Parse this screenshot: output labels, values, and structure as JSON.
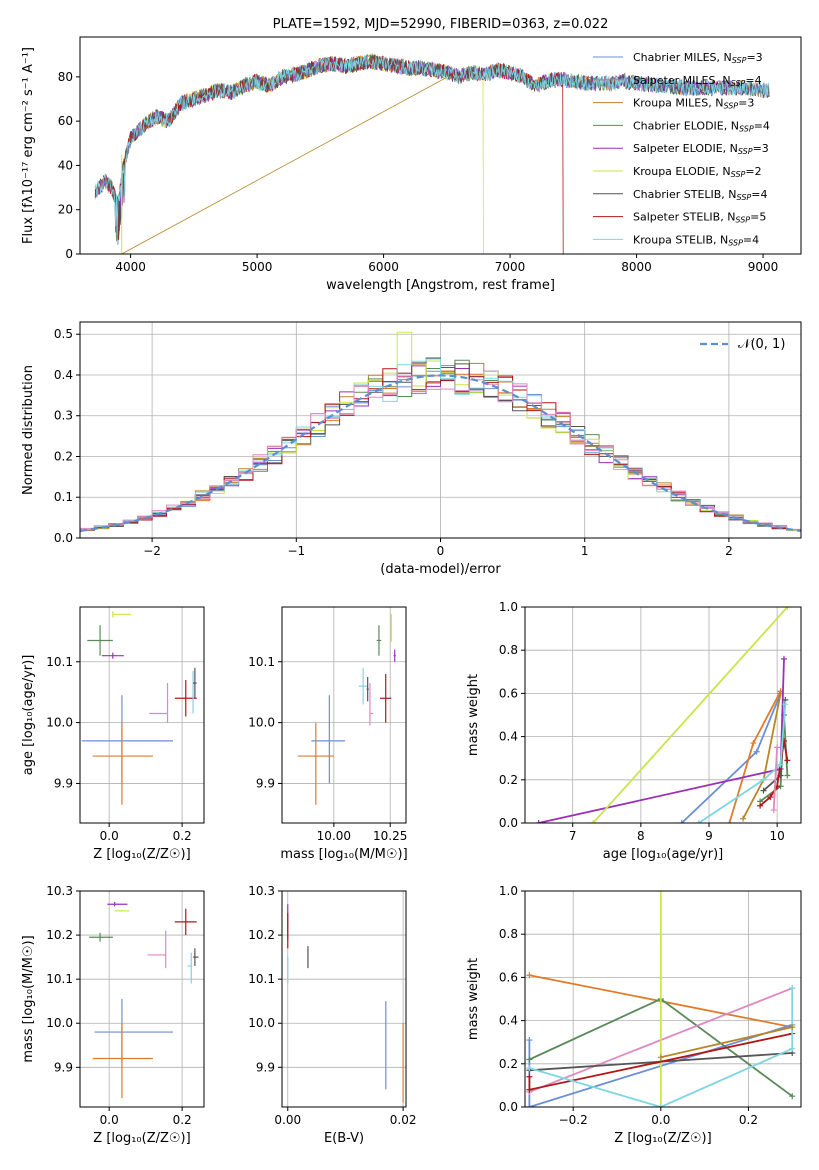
{
  "colors": [
    "#6a8fd6",
    "#e07b2a",
    "#b8862a",
    "#5a8a5a",
    "#9b30b8",
    "#c8e64a",
    "#555555",
    "#b01818",
    "#7dd6e0",
    "#e088c0"
  ],
  "chart_data": [
    {
      "id": "spectrum",
      "type": "line",
      "title": "PLATE=1592, MJD=52990, FIBERID=0363, z=0.022",
      "xlabel": "wavelength [Angstrom, rest frame]",
      "ylabel": "Flux [fλ10⁻¹⁷ erg cm⁻² s⁻¹ A⁻¹]",
      "xlim": [
        3600,
        9300
      ],
      "ylim": [
        0,
        98
      ],
      "xticks": [
        "4000",
        "5000",
        "6000",
        "7000",
        "8000",
        "9000"
      ],
      "yticks": [
        "0",
        "20",
        "40",
        "60",
        "80"
      ],
      "continuum": {
        "x": [
          3720,
          3800,
          3850,
          3900,
          3950,
          4000,
          4100,
          4200,
          4300,
          4400,
          4500,
          4600,
          4700,
          4800,
          4900,
          5000,
          5100,
          5200,
          5300,
          5400,
          5500,
          5600,
          5700,
          5800,
          5900,
          6000,
          6100,
          6200,
          6300,
          6400,
          6500,
          6600,
          6700,
          6800,
          6900,
          7000,
          7100,
          7200,
          7300,
          7400,
          7500,
          7600,
          7700,
          7800,
          7900,
          8000,
          8200,
          8400,
          8600,
          8800,
          9000
        ],
        "y": [
          28,
          33,
          30,
          22,
          42,
          52,
          58,
          62,
          60,
          68,
          70,
          72,
          74,
          73,
          76,
          78,
          76,
          80,
          81,
          83,
          85,
          86,
          85,
          86,
          87,
          86,
          85,
          84,
          84,
          83,
          82,
          80,
          82,
          81,
          83,
          82,
          80,
          76,
          78,
          79,
          78,
          77,
          77,
          77,
          78,
          77,
          76,
          75,
          75,
          75,
          74
        ]
      },
      "dips": [
        {
          "name": "Kroupa MILES",
          "x": 3930,
          "y": 0
        },
        {
          "name": "Kroupa ELODIE",
          "x": 6790,
          "y": 0
        },
        {
          "name": "Salpeter STELIB",
          "x": 7420,
          "y": 0
        }
      ],
      "legend": [
        {
          "name": "Chabrier MILES, N",
          "sub": "SSP",
          "val": "=3",
          "color": "#6a8fd6"
        },
        {
          "name": "Salpeter MILES, N",
          "sub": "SSP",
          "val": "=4",
          "color": "#e07b2a"
        },
        {
          "name": "Kroupa MILES, N",
          "sub": "SSP",
          "val": "=3",
          "color": "#b8862a"
        },
        {
          "name": "Chabrier ELODIE, N",
          "sub": "SSP",
          "val": "=4",
          "color": "#5a8a5a"
        },
        {
          "name": "Salpeter ELODIE, N",
          "sub": "SSP",
          "val": "=3",
          "color": "#9b30b8"
        },
        {
          "name": "Kroupa ELODIE, N",
          "sub": "SSP",
          "val": "=2",
          "color": "#c8e64a"
        },
        {
          "name": "Chabrier STELIB, N",
          "sub": "SSP",
          "val": "=4",
          "color": "#555555"
        },
        {
          "name": "Salpeter STELIB, N",
          "sub": "SSP",
          "val": "=5",
          "color": "#b01818"
        },
        {
          "name": "Kroupa STELIB, N",
          "sub": "SSP",
          "val": "=4",
          "color": "#7dd6e0"
        }
      ]
    },
    {
      "id": "residuals",
      "type": "histogram",
      "xlabel": "(data-model)/error",
      "ylabel": "Normed distribution",
      "xlim": [
        -2.5,
        2.5
      ],
      "ylim": [
        0,
        0.53
      ],
      "xticks": [
        {
          "v": -2,
          "t": "−2"
        },
        {
          "v": -1,
          "t": "−1"
        },
        {
          "v": 0,
          "t": "0"
        },
        {
          "v": 1,
          "t": "1"
        },
        {
          "v": 2,
          "t": "2"
        }
      ],
      "yticks": [
        {
          "v": 0,
          "t": "0.0"
        },
        {
          "v": 0.1,
          "t": "0.1"
        },
        {
          "v": 0.2,
          "t": "0.2"
        },
        {
          "v": 0.3,
          "t": "0.3"
        },
        {
          "v": 0.4,
          "t": "0.4"
        },
        {
          "v": 0.5,
          "t": "0.5"
        }
      ],
      "bin_width": 0.1,
      "legend": "𝒩(0, 1)",
      "legend_color": "#5b8fd0"
    },
    {
      "id": "age-vs-z",
      "type": "errorbar",
      "xlabel": "Z [log₁₀(Z/Z☉)]",
      "ylabel": "age  [log₁₀(age/yr)]",
      "xlim": [
        -0.08,
        0.26
      ],
      "ylim": [
        9.835,
        10.19
      ],
      "xticks": [
        {
          "v": 0,
          "t": "0.0"
        },
        {
          "v": 0.2,
          "t": "0.2"
        }
      ],
      "yticks": [
        {
          "v": 9.9,
          "t": "9.9"
        },
        {
          "v": 10.0,
          "t": "10.0"
        },
        {
          "v": 10.1,
          "t": "10.1"
        }
      ],
      "points": [
        {
          "c": 0,
          "x": 0.035,
          "y": 9.97,
          "xl": 0.11,
          "xh": 0.14,
          "yl": 0.07,
          "yh": 0.075
        },
        {
          "c": 1,
          "x": 0.035,
          "y": 9.945,
          "xl": 0.08,
          "xh": 0.085,
          "yl": 0.08,
          "yh": 0.055
        },
        {
          "c": 3,
          "x": -0.025,
          "y": 10.135,
          "xl": 0.035,
          "xh": 0.035,
          "yl": 0.025,
          "yh": 0.025
        },
        {
          "c": 4,
          "x": 0.01,
          "y": 10.11,
          "xl": 0.03,
          "xh": 0.03,
          "yl": 0.005,
          "yh": 0.005
        },
        {
          "c": 5,
          "x": 0.01,
          "y": 10.178,
          "xl": 0.0,
          "xh": 0.05,
          "yl": 0.005,
          "yh": 0.005
        },
        {
          "c": 7,
          "x": 0.21,
          "y": 10.04,
          "xl": 0.03,
          "xh": 0.03,
          "yl": 0.03,
          "yh": 0.03
        },
        {
          "c": 9,
          "x": 0.16,
          "y": 10.015,
          "xl": 0.05,
          "xh": 0.0,
          "yl": 0.015,
          "yh": 0.05
        },
        {
          "c": 8,
          "x": 0.23,
          "y": 10.055,
          "xl": 0.0,
          "xh": 0.0,
          "yl": 0.04,
          "yh": 0.03
        },
        {
          "c": 6,
          "x": 0.235,
          "y": 10.065,
          "xl": 0.005,
          "xh": 0.005,
          "yl": 0.025,
          "yh": 0.025
        }
      ]
    },
    {
      "id": "age-vs-mass",
      "type": "errorbar",
      "xlabel": "mass [log₁₀(M/M☉)]",
      "ylabel": "",
      "xlim": [
        9.77,
        10.32
      ],
      "ylim": [
        9.835,
        10.19
      ],
      "xticks": [
        {
          "v": 10.0,
          "t": "10.00"
        },
        {
          "v": 10.25,
          "t": "10.25"
        }
      ],
      "yticks": [
        {
          "v": 9.9,
          "t": "9.9"
        },
        {
          "v": 10.0,
          "t": "10.0"
        },
        {
          "v": 10.1,
          "t": "10.1"
        }
      ],
      "points": [
        {
          "c": 0,
          "x": 9.98,
          "y": 9.97,
          "xl": 0.08,
          "xh": 0.07,
          "yl": 0.07,
          "yh": 0.075
        },
        {
          "c": 1,
          "x": 9.92,
          "y": 9.945,
          "xl": 0.08,
          "xh": 0.08,
          "yl": 0.08,
          "yh": 0.055
        },
        {
          "c": 3,
          "x": 10.2,
          "y": 10.135,
          "xl": 0.01,
          "xh": 0.01,
          "yl": 0.025,
          "yh": 0.025
        },
        {
          "c": 4,
          "x": 10.27,
          "y": 10.11,
          "xl": 0.005,
          "xh": 0.005,
          "yl": 0.01,
          "yh": 0.01
        },
        {
          "c": 5,
          "x": 10.255,
          "y": 10.178,
          "xl": 0.005,
          "xh": 0.0,
          "yl": 0.045,
          "yh": 0.0
        },
        {
          "c": 7,
          "x": 10.23,
          "y": 10.04,
          "xl": 0.025,
          "xh": 0.025,
          "yl": 0.04,
          "yh": 0.04
        },
        {
          "c": 9,
          "x": 10.16,
          "y": 10.015,
          "xl": 0.0,
          "xh": 0.015,
          "yl": 0.02,
          "yh": 0.05
        },
        {
          "c": 8,
          "x": 10.13,
          "y": 10.06,
          "xl": 0.02,
          "xh": 0.02,
          "yl": 0.03,
          "yh": 0.03
        },
        {
          "c": 6,
          "x": 10.15,
          "y": 10.055,
          "xl": 0.005,
          "xh": 0.005,
          "yl": 0.02,
          "yh": 0.02
        }
      ]
    },
    {
      "id": "weight-vs-age",
      "type": "line",
      "xlabel": "age  [log₁₀(age/yr)]",
      "ylabel": "mass weight",
      "xlim": [
        6.3,
        10.35
      ],
      "ylim": [
        0,
        1.0
      ],
      "xticks": [
        {
          "v": 7,
          "t": "7"
        },
        {
          "v": 8,
          "t": "8"
        },
        {
          "v": 9,
          "t": "9"
        },
        {
          "v": 10,
          "t": "10"
        }
      ],
      "yticks": [
        {
          "v": 0,
          "t": "0.0"
        },
        {
          "v": 0.2,
          "t": "0.2"
        },
        {
          "v": 0.4,
          "t": "0.4"
        },
        {
          "v": 0.6,
          "t": "0.6"
        },
        {
          "v": 0.8,
          "t": "0.8"
        },
        {
          "v": 1.0,
          "t": "1.0"
        }
      ],
      "series": [
        {
          "c": 0,
          "x": [
            8.6,
            9.7,
            10.05
          ],
          "y": [
            0.0,
            0.33,
            0.6
          ]
        },
        {
          "c": 1,
          "x": [
            9.3,
            9.65,
            10.05
          ],
          "y": [
            0.0,
            0.37,
            0.61
          ]
        },
        {
          "c": 2,
          "x": [
            9.5,
            9.8,
            10.05
          ],
          "y": [
            0.02,
            0.2,
            0.6
          ]
        },
        {
          "c": 3,
          "x": [
            9.75,
            10.05,
            10.1,
            10.15
          ],
          "y": [
            0.1,
            0.17,
            0.5,
            0.22
          ]
        },
        {
          "c": 4,
          "x": [
            6.5,
            10.05,
            10.1
          ],
          "y": [
            0.0,
            0.25,
            0.76
          ]
        },
        {
          "c": 5,
          "x": [
            7.3,
            10.15
          ],
          "y": [
            0.0,
            1.0
          ]
        },
        {
          "c": 6,
          "x": [
            9.8,
            10.05,
            10.12
          ],
          "y": [
            0.15,
            0.22,
            0.57
          ]
        },
        {
          "c": 7,
          "x": [
            9.75,
            9.9,
            10.0,
            10.1,
            10.15
          ],
          "y": [
            0.08,
            0.12,
            0.17,
            0.38,
            0.29
          ]
        },
        {
          "c": 8,
          "x": [
            8.85,
            9.8,
            10.05,
            10.12
          ],
          "y": [
            0.0,
            0.2,
            0.27,
            0.55
          ]
        },
        {
          "c": 9,
          "x": [
            9.95,
            10.0
          ],
          "y": [
            0.06,
            0.35
          ]
        }
      ]
    },
    {
      "id": "mass-vs-z",
      "type": "errorbar",
      "xlabel": "Z [log₁₀(Z/Z☉)]",
      "ylabel": "mass [log₁₀(M/M☉)]",
      "xlim": [
        -0.08,
        0.26
      ],
      "ylim": [
        9.81,
        10.3
      ],
      "xticks": [
        {
          "v": 0,
          "t": "0.0"
        },
        {
          "v": 0.2,
          "t": "0.2"
        }
      ],
      "yticks": [
        {
          "v": 9.9,
          "t": "9.9"
        },
        {
          "v": 10.0,
          "t": "10.0"
        },
        {
          "v": 10.1,
          "t": "10.1"
        },
        {
          "v": 10.2,
          "t": "10.2"
        },
        {
          "v": 10.3,
          "t": "10.3"
        }
      ],
      "points": [
        {
          "c": 0,
          "x": 0.035,
          "y": 9.98,
          "xl": 0.075,
          "xh": 0.14,
          "yl": 0.07,
          "yh": 0.075
        },
        {
          "c": 1,
          "x": 0.035,
          "y": 9.92,
          "xl": 0.08,
          "xh": 0.085,
          "yl": 0.09,
          "yh": 0.08
        },
        {
          "c": 3,
          "x": -0.025,
          "y": 10.195,
          "xl": 0.03,
          "xh": 0.035,
          "yl": 0.01,
          "yh": 0.01
        },
        {
          "c": 4,
          "x": 0.015,
          "y": 10.27,
          "xl": 0.02,
          "xh": 0.035,
          "yl": 0.005,
          "yh": 0.005
        },
        {
          "c": 5,
          "x": 0.015,
          "y": 10.255,
          "xl": 0.0,
          "xh": 0.04,
          "yl": 0.0,
          "yh": 0.0
        },
        {
          "c": 7,
          "x": 0.21,
          "y": 10.23,
          "xl": 0.03,
          "xh": 0.03,
          "yl": 0.03,
          "yh": 0.03
        },
        {
          "c": 9,
          "x": 0.155,
          "y": 10.155,
          "xl": 0.05,
          "xh": 0.0,
          "yl": 0.03,
          "yh": 0.055
        },
        {
          "c": 8,
          "x": 0.225,
          "y": 10.13,
          "xl": 0.01,
          "xh": 0.0,
          "yl": 0.04,
          "yh": 0.03
        },
        {
          "c": 6,
          "x": 0.235,
          "y": 10.15,
          "xl": 0.005,
          "xh": 0.01,
          "yl": 0.02,
          "yh": 0.02
        }
      ]
    },
    {
      "id": "mass-vs-ebv",
      "type": "errorbar",
      "xlabel": "E(B-V)",
      "ylabel": "",
      "xlim": [
        -0.001,
        0.0205
      ],
      "ylim": [
        9.81,
        10.3
      ],
      "xticks": [
        {
          "v": 0,
          "t": "0.00"
        },
        {
          "v": 0.02,
          "t": "0.02"
        }
      ],
      "yticks": [
        {
          "v": 9.9,
          "t": "9.9"
        },
        {
          "v": 10.0,
          "t": "10.0"
        },
        {
          "v": 10.1,
          "t": "10.1"
        },
        {
          "v": 10.2,
          "t": "10.2"
        },
        {
          "v": 10.3,
          "t": "10.3"
        }
      ],
      "points": [
        {
          "c": 0,
          "x": 0.017,
          "y": 9.95,
          "xl": 0.0,
          "xh": 0.0,
          "yl": 0.1,
          "yh": 0.1
        },
        {
          "c": 1,
          "x": 0.02,
          "y": 9.91,
          "xl": 0.0,
          "xh": 0.0,
          "yl": 0.09,
          "yh": 0.09
        },
        {
          "c": 4,
          "x": 0.0,
          "y": 10.23,
          "xl": 0.0,
          "xh": 0.0,
          "yl": 0.04,
          "yh": 0.04
        },
        {
          "c": 7,
          "x": 0.0,
          "y": 10.21,
          "xl": 0.0,
          "xh": 0.0,
          "yl": 0.04,
          "yh": 0.04
        },
        {
          "c": 8,
          "x": 0.0,
          "y": 10.12,
          "xl": 0.0,
          "xh": 0.0,
          "yl": 0.03,
          "yh": 0.03
        },
        {
          "c": 6,
          "x": 0.0035,
          "y": 10.15,
          "xl": 0.0,
          "xh": 0.0,
          "yl": 0.025,
          "yh": 0.025
        }
      ]
    },
    {
      "id": "weight-vs-z",
      "type": "line",
      "xlabel": "Z [log₁₀(Z/Z☉)]",
      "ylabel": "mass weight",
      "xlim": [
        -0.31,
        0.32
      ],
      "ylim": [
        0,
        1.0
      ],
      "xticks": [
        {
          "v": -0.2,
          "t": "−0.2"
        },
        {
          "v": 0,
          "t": "0.0"
        },
        {
          "v": 0.2,
          "t": "0.2"
        }
      ],
      "yticks": [
        {
          "v": 0,
          "t": "0.0"
        },
        {
          "v": 0.2,
          "t": "0.2"
        },
        {
          "v": 0.4,
          "t": "0.4"
        },
        {
          "v": 0.6,
          "t": "0.6"
        },
        {
          "v": 0.8,
          "t": "0.8"
        },
        {
          "v": 1.0,
          "t": "1.0"
        }
      ],
      "series": [
        {
          "c": 1,
          "x": [
            -0.3,
            0.3
          ],
          "y": [
            0.61,
            0.37
          ]
        },
        {
          "c": 0,
          "x": [
            -0.3,
            -0.3,
            0.3
          ],
          "y": [
            0.31,
            0.0,
            0.38
          ]
        },
        {
          "c": 3,
          "x": [
            -0.3,
            0.0,
            0.3
          ],
          "y": [
            0.22,
            0.5,
            0.05
          ]
        },
        {
          "c": 9,
          "x": [
            -0.3,
            0.3
          ],
          "y": [
            0.07,
            0.55
          ]
        },
        {
          "c": 5,
          "x": [
            0.0,
            0.0
          ],
          "y": [
            0.0,
            1.0
          ]
        },
        {
          "c": 6,
          "x": [
            -0.3,
            0.3
          ],
          "y": [
            0.17,
            0.25
          ]
        },
        {
          "c": 7,
          "x": [
            -0.3,
            -0.3,
            0.3
          ],
          "y": [
            0.14,
            0.08,
            0.34
          ]
        },
        {
          "c": 8,
          "x": [
            -0.3,
            0.0,
            0.3,
            0.3
          ],
          "y": [
            0.18,
            0.0,
            0.27,
            0.55
          ]
        },
        {
          "c": 2,
          "x": [
            0.0,
            0.3
          ],
          "y": [
            0.23,
            0.37
          ]
        }
      ]
    }
  ]
}
